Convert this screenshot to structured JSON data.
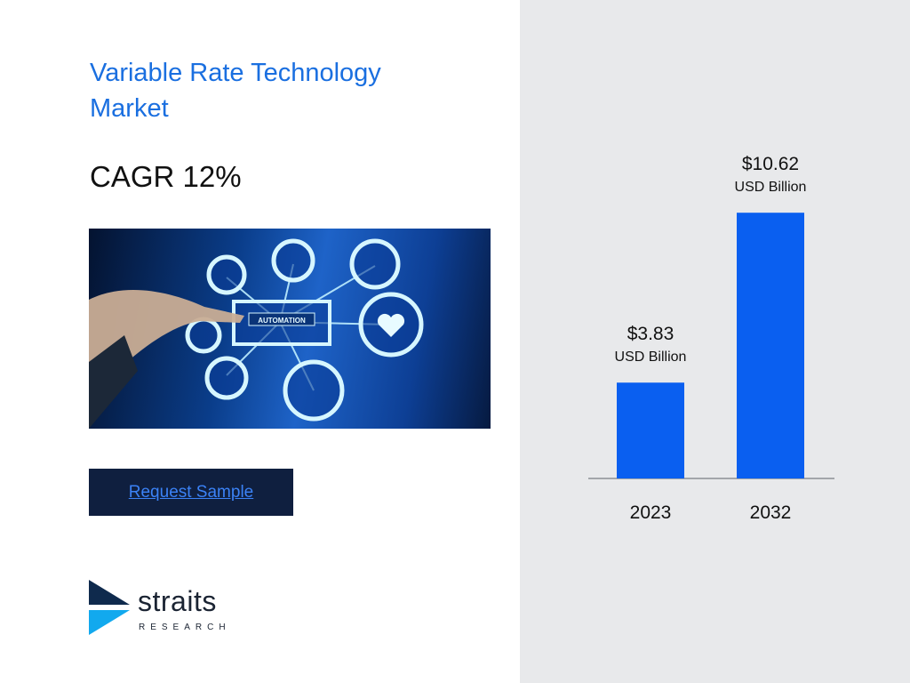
{
  "title": "Variable Rate Technology Market",
  "cagr": "CAGR 12%",
  "hero_image": {
    "label": "AUTOMATION"
  },
  "request_button": {
    "label": "Request Sample"
  },
  "logo": {
    "word": "straits",
    "sub": "RESEARCH"
  },
  "colors": {
    "accent": "#1a6fe0",
    "bar": "#0a5ff0",
    "button_bg": "#0f1f3f",
    "panel_bg": "#e8e9eb"
  },
  "chart_data": {
    "type": "bar",
    "categories": [
      "2023",
      "2032"
    ],
    "values": [
      3.83,
      10.62
    ],
    "value_labels": [
      "$3.83",
      "$10.62"
    ],
    "unit_label": "USD Billion",
    "ylim": [
      0,
      11.8
    ],
    "grid": false,
    "legend": "none"
  }
}
